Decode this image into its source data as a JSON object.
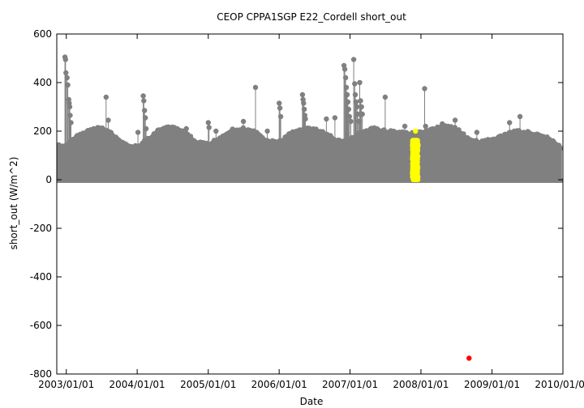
{
  "chart_data": {
    "type": "scatter",
    "title": "CEOP CPPA1SGP E22_Cordell  short_out",
    "xlabel": "Date",
    "ylabel": "short_out (W/m^2)",
    "ylim": [
      -800,
      600
    ],
    "xlim": [
      "2002-11-13",
      "2010-01-01"
    ],
    "yticks": [
      600,
      400,
      200,
      0,
      -200,
      -400,
      -600,
      -800
    ],
    "xticks": [
      {
        "date": "2003-01-01",
        "label": "2003/01/01"
      },
      {
        "date": "2004-01-01",
        "label": "2004/01/01"
      },
      {
        "date": "2005-01-01",
        "label": "2005/01/01"
      },
      {
        "date": "2006-01-01",
        "label": "2006/01/01"
      },
      {
        "date": "2007-01-01",
        "label": "2007/01/01"
      },
      {
        "date": "2008-01-01",
        "label": "2008/01/01"
      },
      {
        "date": "2009-01-01",
        "label": "2009/01/01"
      },
      {
        "date": "2010-01-01",
        "label": "2010/01/01"
      }
    ],
    "grid": false,
    "series": [
      {
        "color": "#808080",
        "style": "dense daily envelope with points",
        "envelope": [
          [
            "2002-11-13",
            150
          ],
          [
            "2002-12-15",
            140
          ],
          [
            "2003-01-20",
            160
          ],
          [
            "2003-03-01",
            185
          ],
          [
            "2003-05-01",
            210
          ],
          [
            "2003-07-01",
            220
          ],
          [
            "2003-09-01",
            190
          ],
          [
            "2003-11-01",
            150
          ],
          [
            "2004-01-01",
            140
          ],
          [
            "2004-03-01",
            175
          ],
          [
            "2004-05-01",
            215
          ],
          [
            "2004-07-01",
            220
          ],
          [
            "2004-09-01",
            200
          ],
          [
            "2004-11-01",
            160
          ],
          [
            "2005-01-01",
            150
          ],
          [
            "2005-03-01",
            180
          ],
          [
            "2005-05-01",
            210
          ],
          [
            "2005-07-01",
            215
          ],
          [
            "2005-09-01",
            200
          ],
          [
            "2005-11-01",
            165
          ],
          [
            "2006-01-01",
            160
          ],
          [
            "2006-03-01",
            195
          ],
          [
            "2006-05-01",
            215
          ],
          [
            "2006-07-01",
            215
          ],
          [
            "2006-09-01",
            195
          ],
          [
            "2006-11-01",
            165
          ],
          [
            "2007-01-01",
            170
          ],
          [
            "2007-03-01",
            200
          ],
          [
            "2007-05-01",
            215
          ],
          [
            "2007-07-01",
            205
          ],
          [
            "2007-09-01",
            200
          ],
          [
            "2007-11-01",
            195
          ],
          [
            "2008-01-01",
            200
          ],
          [
            "2008-03-01",
            215
          ],
          [
            "2008-05-01",
            225
          ],
          [
            "2008-07-01",
            215
          ],
          [
            "2008-09-01",
            175
          ],
          [
            "2008-11-01",
            160
          ],
          [
            "2009-01-01",
            170
          ],
          [
            "2009-03-01",
            185
          ],
          [
            "2009-05-01",
            205
          ],
          [
            "2009-07-01",
            200
          ],
          [
            "2009-09-01",
            190
          ],
          [
            "2009-11-01",
            170
          ],
          [
            "2009-12-25",
            140
          ]
        ],
        "spikes": [
          [
            "2002-12-25",
            505
          ],
          [
            "2002-12-28",
            495
          ],
          [
            "2002-12-30",
            440
          ],
          [
            "2003-01-05",
            420
          ],
          [
            "2003-01-09",
            390
          ],
          [
            "2003-01-14",
            330
          ],
          [
            "2003-01-16",
            315
          ],
          [
            "2003-01-19",
            300
          ],
          [
            "2003-01-21",
            265
          ],
          [
            "2003-01-25",
            235
          ],
          [
            "2003-07-25",
            340
          ],
          [
            "2003-08-05",
            245
          ],
          [
            "2004-01-05",
            195
          ],
          [
            "2004-02-01",
            345
          ],
          [
            "2004-02-04",
            325
          ],
          [
            "2004-02-08",
            285
          ],
          [
            "2004-02-12",
            255
          ],
          [
            "2004-02-16",
            210
          ],
          [
            "2004-09-10",
            210
          ],
          [
            "2005-01-01",
            235
          ],
          [
            "2005-01-05",
            215
          ],
          [
            "2005-02-10",
            200
          ],
          [
            "2005-07-01",
            240
          ],
          [
            "2005-09-01",
            380
          ],
          [
            "2005-11-01",
            200
          ],
          [
            "2006-01-01",
            315
          ],
          [
            "2006-01-05",
            295
          ],
          [
            "2006-01-09",
            260
          ],
          [
            "2006-05-01",
            350
          ],
          [
            "2006-05-04",
            330
          ],
          [
            "2006-05-07",
            315
          ],
          [
            "2006-05-10",
            290
          ],
          [
            "2006-05-13",
            265
          ],
          [
            "2006-05-16",
            250
          ],
          [
            "2006-09-01",
            250
          ],
          [
            "2006-10-15",
            255
          ],
          [
            "2006-12-01",
            470
          ],
          [
            "2006-12-05",
            455
          ],
          [
            "2006-12-09",
            420
          ],
          [
            "2006-12-13",
            380
          ],
          [
            "2006-12-17",
            350
          ],
          [
            "2006-12-21",
            320
          ],
          [
            "2006-12-25",
            290
          ],
          [
            "2006-12-29",
            260
          ],
          [
            "2007-01-05",
            240
          ],
          [
            "2007-01-20",
            495
          ],
          [
            "2007-01-25",
            395
          ],
          [
            "2007-01-28",
            350
          ],
          [
            "2007-02-01",
            320
          ],
          [
            "2007-02-06",
            300
          ],
          [
            "2007-02-10",
            270
          ],
          [
            "2007-02-15",
            240
          ],
          [
            "2007-02-20",
            400
          ],
          [
            "2007-02-24",
            325
          ],
          [
            "2007-03-01",
            300
          ],
          [
            "2007-03-05",
            270
          ],
          [
            "2007-07-01",
            340
          ],
          [
            "2007-10-10",
            220
          ],
          [
            "2008-01-20",
            375
          ],
          [
            "2008-01-25",
            220
          ],
          [
            "2008-04-20",
            230
          ],
          [
            "2008-06-25",
            245
          ],
          [
            "2008-10-15",
            195
          ],
          [
            "2009-04-01",
            235
          ],
          [
            "2009-05-25",
            260
          ],
          [
            "2009-10-25",
            165
          ]
        ]
      },
      {
        "color": "#ffff00",
        "style": "highlighted points",
        "x_range": [
          "2007-11-25",
          "2007-12-10"
        ],
        "y_range": [
          0,
          200
        ],
        "top_point": [
          "2007-12-04",
          200
        ]
      },
      {
        "color": "#ff0000",
        "style": "single outlier point",
        "points": [
          [
            "2008-09-05",
            -735
          ]
        ]
      }
    ]
  }
}
